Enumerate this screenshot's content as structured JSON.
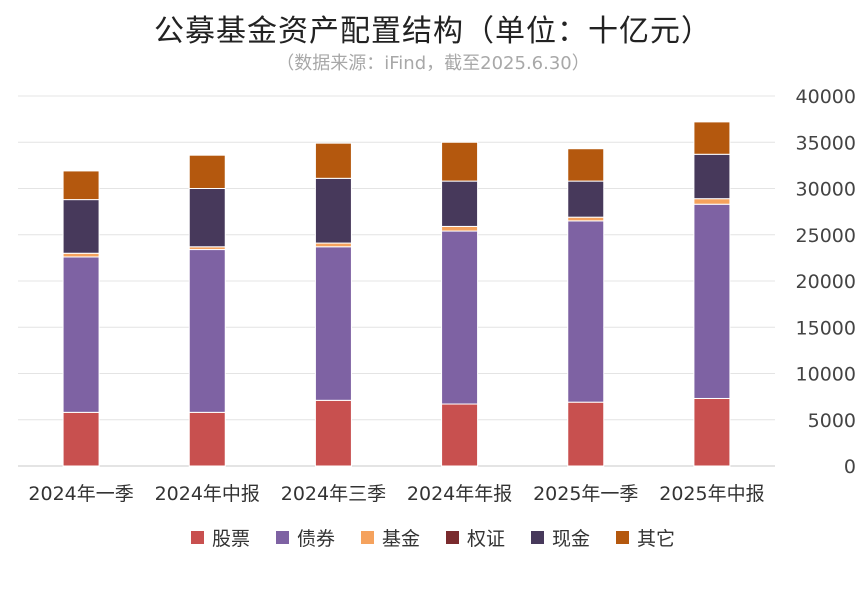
{
  "chart_data": {
    "type": "bar",
    "stacked": true,
    "title": "公募基金资产配置结构（单位：十亿元）",
    "subtitle": "（数据来源：iFind，截至2025.6.30）",
    "categories": [
      "2024年一季",
      "2024年中报",
      "2024年三季",
      "2024年年报",
      "2025年一季",
      "2025年中报"
    ],
    "series": [
      {
        "name": "股票",
        "color": "#C8504F",
        "values": [
          5800,
          5800,
          7100,
          6700,
          6900,
          7300
        ]
      },
      {
        "name": "债券",
        "color": "#7E62A3",
        "values": [
          16800,
          17600,
          16600,
          18700,
          19600,
          21000
        ]
      },
      {
        "name": "基金",
        "color": "#F5A25D",
        "values": [
          400,
          300,
          400,
          500,
          400,
          600
        ]
      },
      {
        "name": "权证",
        "color": "#7A2B2E",
        "values": [
          0,
          0,
          0,
          0,
          0,
          0
        ]
      },
      {
        "name": "现金",
        "color": "#47395B",
        "values": [
          5800,
          6300,
          7000,
          4900,
          3900,
          4800
        ]
      },
      {
        "name": "其它",
        "color": "#B4580E",
        "values": [
          3100,
          3600,
          3800,
          4200,
          3500,
          3500
        ]
      }
    ],
    "ylim": [
      0,
      40000
    ],
    "yticks": [
      0,
      5000,
      10000,
      15000,
      20000,
      25000,
      30000,
      35000,
      40000
    ],
    "y_axis_side": "right",
    "grid": true,
    "legend_position": "bottom"
  }
}
